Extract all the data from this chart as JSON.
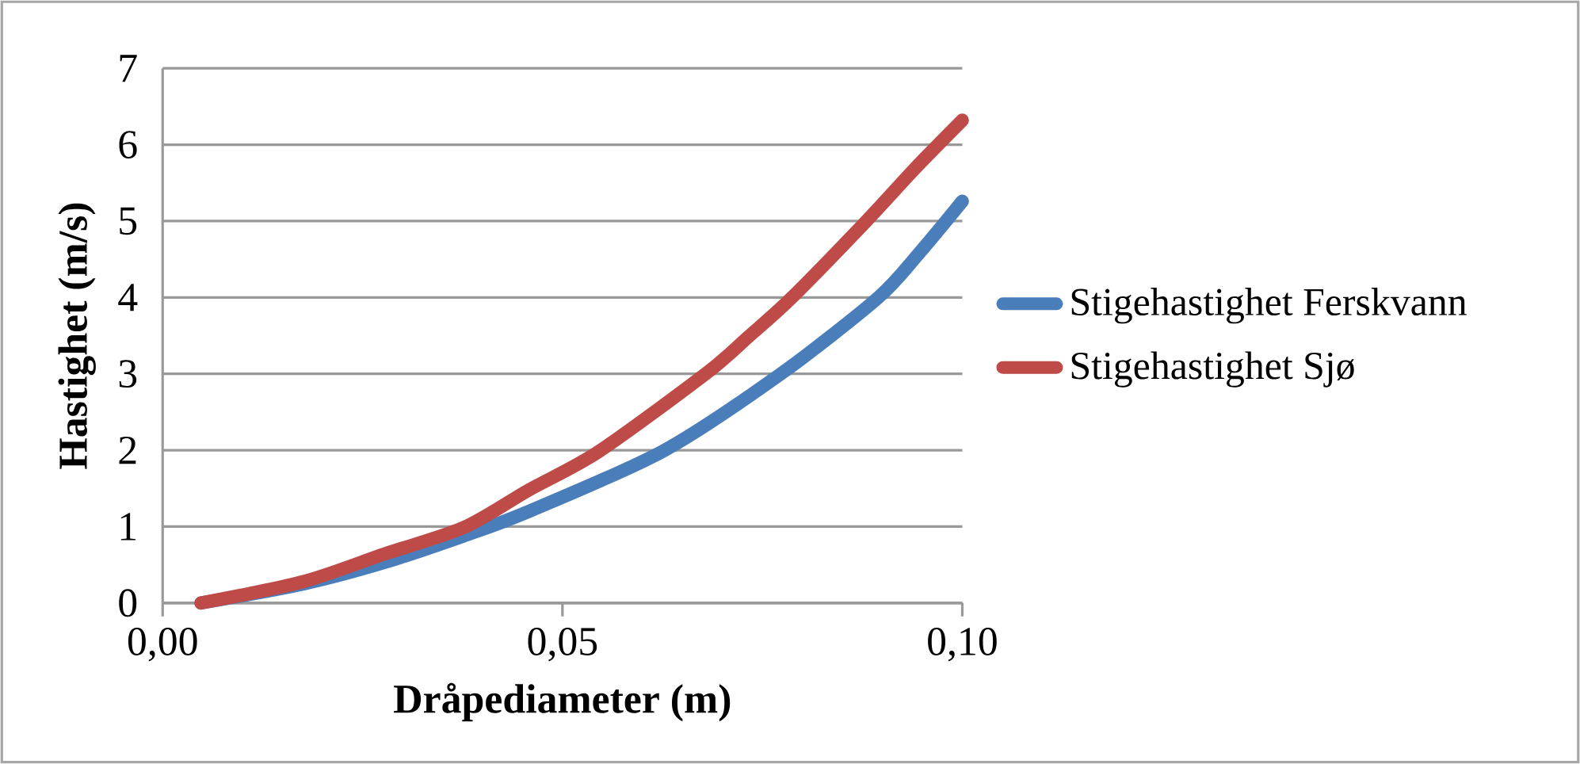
{
  "chart_data": {
    "type": "line",
    "xlabel": "Dråpediameter (m)",
    "ylabel": "Hastighet (m/s)",
    "xlim": [
      0,
      0.1
    ],
    "xticks": [
      {
        "value": 0,
        "label": "0,00"
      },
      {
        "value": 0.05,
        "label": "0,05"
      },
      {
        "value": 0.1,
        "label": "0,10"
      }
    ],
    "ylim": [
      0,
      7
    ],
    "yticks": [
      0,
      1,
      2,
      3,
      4,
      5,
      6,
      7
    ],
    "grid": "y",
    "legend": "right",
    "marker": "none",
    "line_style": "solid",
    "series": [
      {
        "name": "Stigehastighet Ferskvann",
        "color": "#4a7ebb",
        "x": [
          0.0048,
          0.0176,
          0.0277,
          0.0377,
          0.0458,
          0.0626,
          0.0773,
          0.0894,
          0.0946,
          0.1
        ],
        "values": [
          0,
          0.25,
          0.53,
          0.88,
          1.2,
          1.99,
          3.0,
          3.99,
          4.58,
          5.26
        ]
      },
      {
        "name": "Stigehastighet Sjø",
        "color": "#be4b48",
        "x": [
          0.0048,
          0.0176,
          0.0277,
          0.0377,
          0.0458,
          0.0545,
          0.0679,
          0.0733,
          0.0786,
          0.088,
          0.094,
          0.1
        ],
        "values": [
          0,
          0.28,
          0.64,
          0.99,
          1.48,
          1.98,
          3.0,
          3.49,
          3.99,
          5.0,
          5.68,
          6.32
        ]
      }
    ]
  }
}
